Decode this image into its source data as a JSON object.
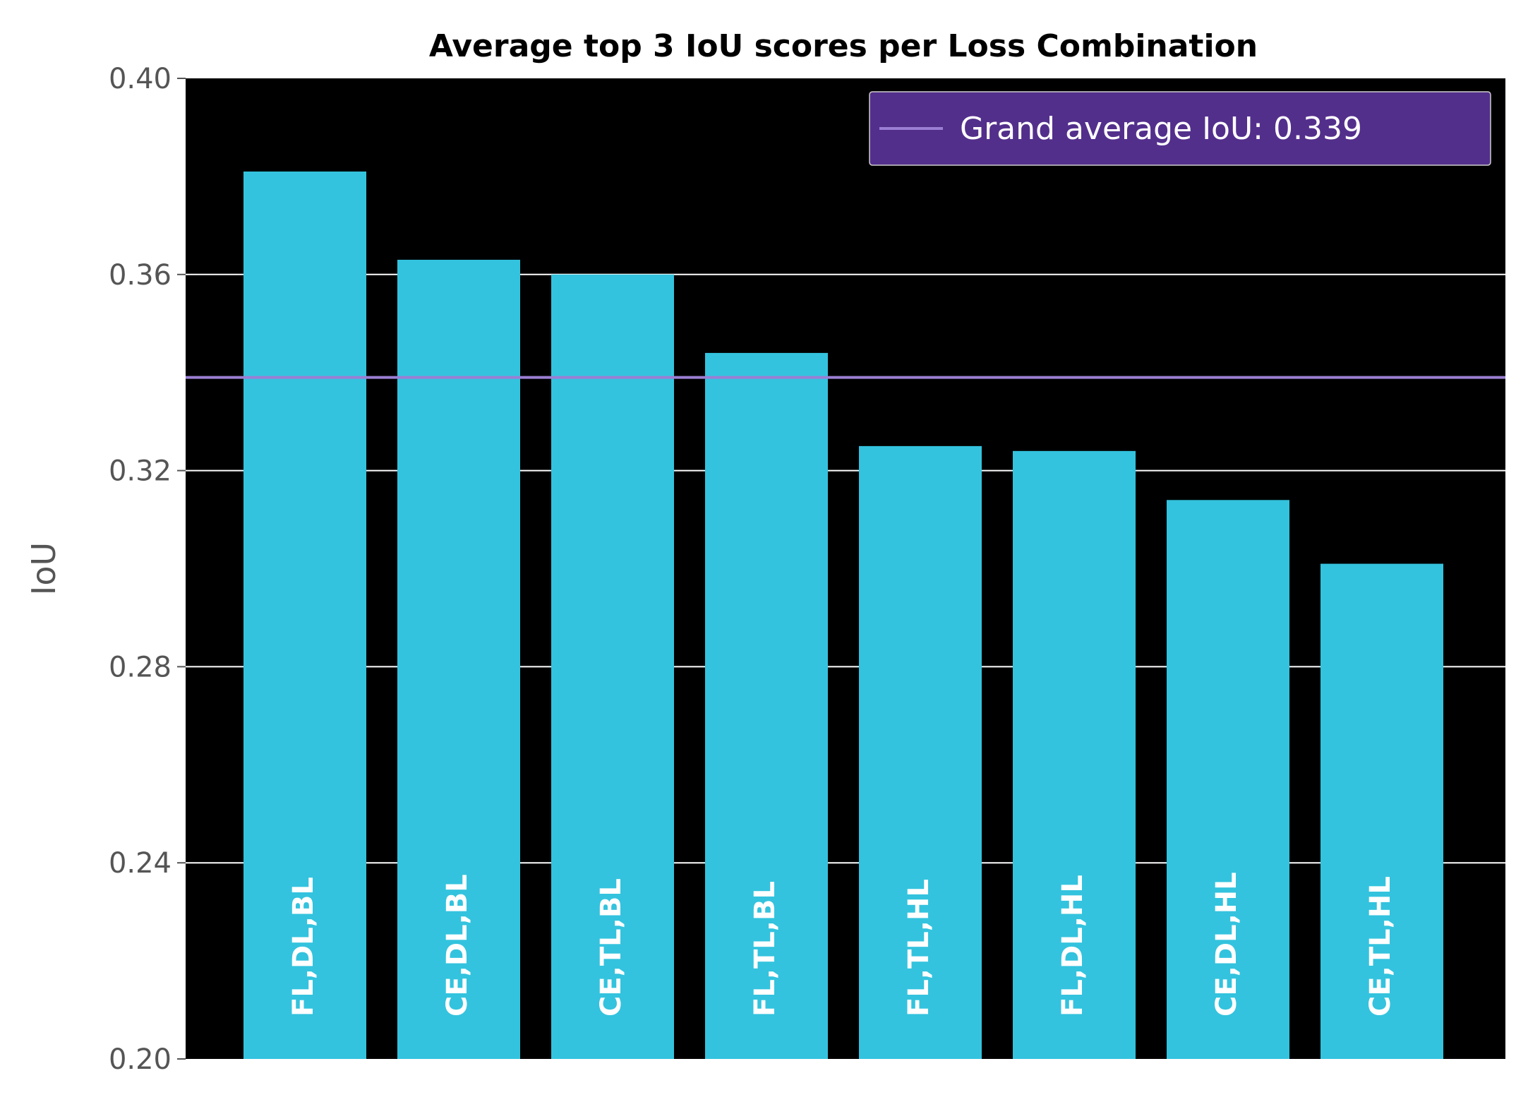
{
  "chart_data": {
    "type": "bar",
    "title": "Average top 3 IoU scores per Loss Combination",
    "xlabel": "",
    "ylabel": "IoU",
    "ylim": [
      0.2,
      0.4
    ],
    "yticks": [
      "0.20",
      "0.24",
      "0.28",
      "0.32",
      "0.36",
      "0.40"
    ],
    "categories": [
      "FL,DL,BL",
      "CE,DL,BL",
      "CE,TL,BL",
      "FL,TL,BL",
      "FL,TL,HL",
      "FL,DL,HL",
      "CE,DL,HL",
      "CE,TL,HL"
    ],
    "values": [
      0.381,
      0.363,
      0.36,
      0.344,
      0.325,
      0.324,
      0.314,
      0.301
    ],
    "reference_line": {
      "value": 0.339,
      "label": "Grand average IoU: 0.339"
    },
    "grid": true,
    "legend_position": "top-right",
    "colors": {
      "bar": "#33c3de",
      "plot_background": "#000000",
      "grid": "#ffffff",
      "reference_line": "#9b7fd4",
      "legend_background": "#532f8c",
      "bar_label": "#ffffff",
      "tick_label": "#555555"
    }
  }
}
